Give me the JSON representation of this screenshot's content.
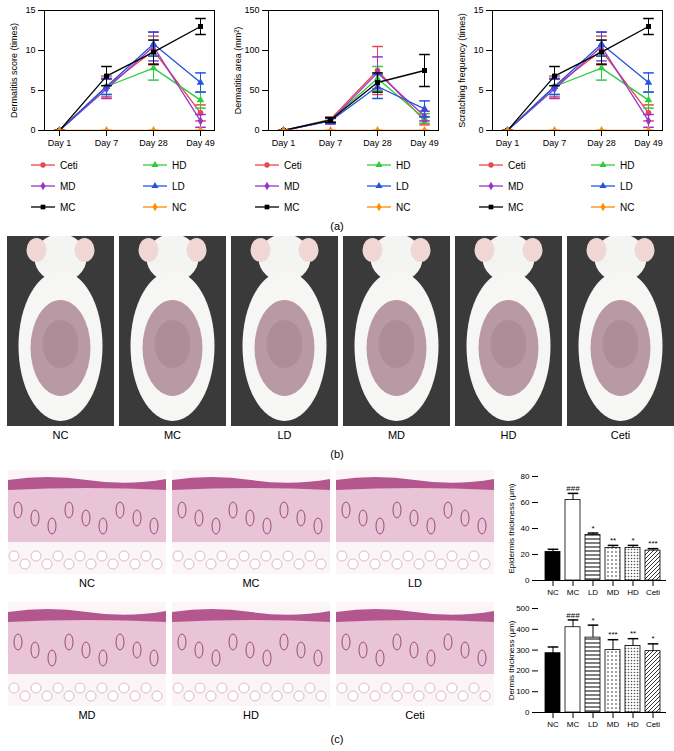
{
  "chart_data": [
    {
      "type": "line",
      "y_label": "Dermatitis score (times)",
      "categories": [
        "Day 1",
        "Day 7",
        "Day 28",
        "Day 49"
      ],
      "ylim": [
        0,
        15
      ],
      "yticks": [
        0,
        5,
        10,
        15
      ],
      "series": [
        {
          "name": "Ceti",
          "color": "#e8474b",
          "marker": "circle",
          "values": [
            0,
            5.5,
            10,
            2.2
          ],
          "errors": [
            0,
            1.3,
            1.8,
            1.0
          ]
        },
        {
          "name": "HD",
          "color": "#2ecc40",
          "marker": "triangle",
          "values": [
            0,
            5.5,
            7.8,
            3.8
          ],
          "errors": [
            0,
            1.0,
            1.5,
            1.0
          ]
        },
        {
          "name": "MD",
          "color": "#9933cc",
          "marker": "diamond",
          "values": [
            0,
            5.2,
            10.5,
            1.2
          ],
          "errors": [
            0,
            1.2,
            1.8,
            0.8
          ]
        },
        {
          "name": "LD",
          "color": "#2255dd",
          "marker": "triangle",
          "values": [
            0,
            5.5,
            10.8,
            6
          ],
          "errors": [
            0,
            1.0,
            1.5,
            1.2
          ]
        },
        {
          "name": "MC",
          "color": "#000000",
          "marker": "square",
          "values": [
            0,
            6.8,
            9.8,
            13
          ],
          "errors": [
            0,
            1.2,
            1.5,
            1.0
          ]
        },
        {
          "name": "NC",
          "color": "#ff8c00",
          "marker": "diamond",
          "values": [
            0,
            0,
            0,
            0
          ],
          "errors": [
            0,
            0,
            0,
            0
          ]
        }
      ]
    },
    {
      "type": "line",
      "y_label": "Dermatitis area (mm²)",
      "categories": [
        "Day 1",
        "Day 7",
        "Day 28",
        "Day 49"
      ],
      "ylim": [
        0,
        150
      ],
      "yticks": [
        0,
        50,
        100,
        150
      ],
      "series": [
        {
          "name": "Ceti",
          "color": "#e8474b",
          "marker": "circle",
          "values": [
            0,
            14,
            75,
            12
          ],
          "errors": [
            0,
            3,
            30,
            5
          ]
        },
        {
          "name": "HD",
          "color": "#2ecc40",
          "marker": "triangle",
          "values": [
            0,
            13,
            65,
            15
          ],
          "errors": [
            0,
            3,
            15,
            6
          ]
        },
        {
          "name": "MD",
          "color": "#9933cc",
          "marker": "diamond",
          "values": [
            0,
            12,
            72,
            18
          ],
          "errors": [
            0,
            4,
            20,
            6
          ]
        },
        {
          "name": "LD",
          "color": "#2255dd",
          "marker": "triangle",
          "values": [
            0,
            12,
            55,
            27
          ],
          "errors": [
            0,
            3,
            15,
            10
          ]
        },
        {
          "name": "MC",
          "color": "#000000",
          "marker": "square",
          "values": [
            0,
            13,
            60,
            75
          ],
          "errors": [
            0,
            3,
            12,
            20
          ]
        },
        {
          "name": "NC",
          "color": "#ff8c00",
          "marker": "diamond",
          "values": [
            0,
            0,
            0,
            0
          ],
          "errors": [
            0,
            0,
            0,
            0
          ]
        }
      ]
    },
    {
      "type": "line",
      "y_label": "Scratching frequency (times)",
      "categories": [
        "Day 1",
        "Day 7",
        "Day 28",
        "Day 49"
      ],
      "ylim": [
        0,
        15
      ],
      "yticks": [
        0,
        5,
        10,
        15
      ],
      "series": [
        {
          "name": "Ceti",
          "color": "#e8474b",
          "marker": "circle",
          "values": [
            0,
            5.5,
            10,
            2.2
          ],
          "errors": [
            0,
            1.3,
            1.8,
            1.0
          ]
        },
        {
          "name": "HD",
          "color": "#2ecc40",
          "marker": "triangle",
          "values": [
            0,
            5.5,
            7.8,
            3.8
          ],
          "errors": [
            0,
            1.0,
            1.5,
            1.0
          ]
        },
        {
          "name": "MD",
          "color": "#9933cc",
          "marker": "diamond",
          "values": [
            0,
            5.2,
            10.5,
            1.2
          ],
          "errors": [
            0,
            1.2,
            1.8,
            0.8
          ]
        },
        {
          "name": "LD",
          "color": "#2255dd",
          "marker": "triangle",
          "values": [
            0,
            5.5,
            10.8,
            6
          ],
          "errors": [
            0,
            1.0,
            1.5,
            1.2
          ]
        },
        {
          "name": "MC",
          "color": "#000000",
          "marker": "square",
          "values": [
            0,
            6.8,
            9.8,
            13
          ],
          "errors": [
            0,
            1.2,
            1.5,
            1.0
          ]
        },
        {
          "name": "NC",
          "color": "#ff8c00",
          "marker": "diamond",
          "values": [
            0,
            0,
            0,
            0
          ],
          "errors": [
            0,
            0,
            0,
            0
          ]
        }
      ]
    },
    {
      "type": "bar",
      "y_label": "Epidermis thickness (μm)",
      "categories": [
        "NC",
        "MC",
        "LD",
        "MD",
        "HD",
        "Ceti"
      ],
      "values": [
        22,
        62,
        35,
        25,
        25,
        23
      ],
      "errors": [
        2,
        5,
        1.5,
        2,
        2,
        1.5
      ],
      "annotations": [
        null,
        "###",
        "*",
        "**",
        "*",
        "***"
      ],
      "ylim": [
        0,
        80
      ],
      "yticks": [
        0,
        20,
        40,
        60,
        80
      ]
    },
    {
      "type": "bar",
      "y_label": "Dermis thickness (μm)",
      "categories": [
        "NC",
        "MC",
        "LD",
        "MD",
        "HD",
        "Ceti"
      ],
      "values": [
        285,
        410,
        360,
        300,
        320,
        295
      ],
      "errors": [
        30,
        35,
        60,
        50,
        35,
        35
      ],
      "annotations": [
        null,
        "###",
        "*",
        "***",
        "**",
        "*"
      ],
      "ylim": [
        0,
        500
      ],
      "yticks": [
        0,
        100,
        200,
        300,
        400,
        500
      ]
    }
  ],
  "panel_labels": [
    "(a)",
    "(b)",
    "(c)"
  ],
  "photos": {
    "labels": [
      "NC",
      "MC",
      "LD",
      "MD",
      "HD",
      "Ceti"
    ]
  },
  "histology": {
    "labels": [
      "NC",
      "MC",
      "LD",
      "MD",
      "HD",
      "Ceti"
    ]
  }
}
